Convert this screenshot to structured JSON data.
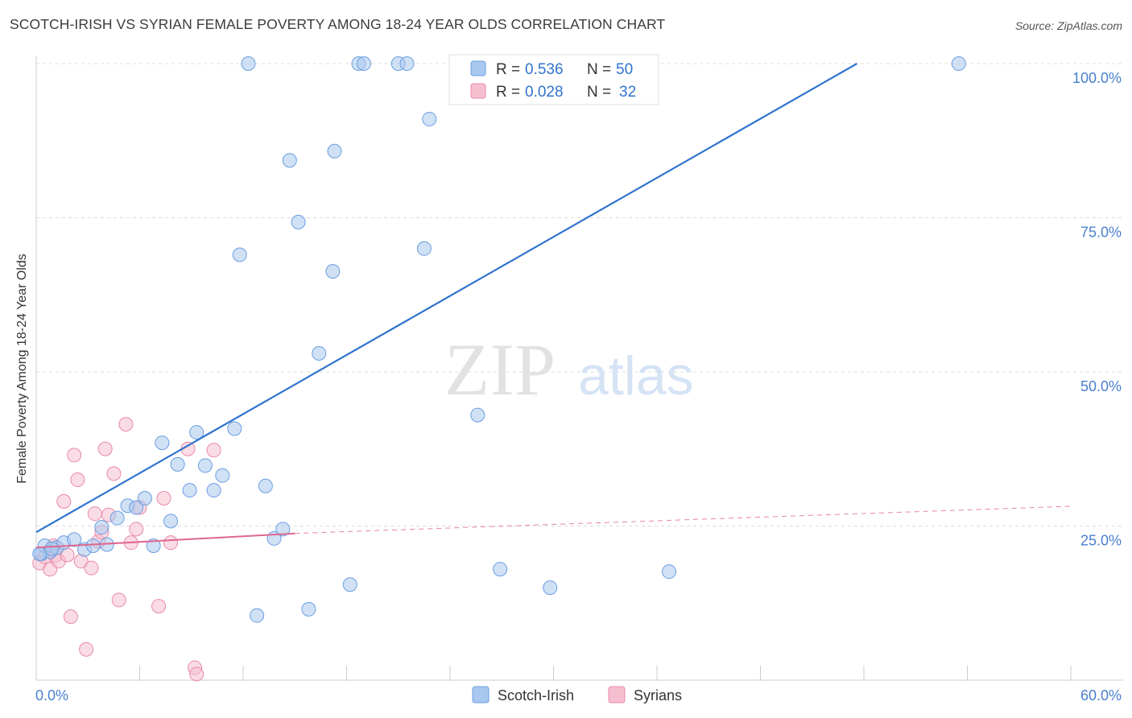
{
  "chart_data": {
    "type": "scatter",
    "title": "SCOTCH-IRISH VS SYRIAN FEMALE POVERTY AMONG 18-24 YEAR OLDS CORRELATION CHART",
    "source": "Source: ZipAtlas.com",
    "watermark": {
      "zip": "ZIP",
      "atlas": "atlas"
    },
    "ylabel": "Female Poverty Among 18-24 Year Olds",
    "xlabel": "",
    "xlim": [
      0,
      60
    ],
    "ylim": [
      0,
      105
    ],
    "x_tick_labels": [
      {
        "value": 0,
        "label": "0.0%"
      },
      {
        "value": 60,
        "label": "60.0%"
      }
    ],
    "y_tick_labels": [
      {
        "value": 25,
        "label": "25.0%"
      },
      {
        "value": 50,
        "label": "50.0%"
      },
      {
        "value": 75,
        "label": "75.0%"
      },
      {
        "value": 100,
        "label": "100.0%"
      }
    ],
    "x_minor_ticks": [
      0,
      6,
      12,
      18,
      24,
      30,
      36,
      42,
      48,
      54,
      60
    ],
    "legend_top": [
      {
        "name": "Scotch-Irish",
        "r_label": "R =",
        "r_value": "0.536",
        "n_label": "N =",
        "n_value": "50"
      },
      {
        "name": "Syrians",
        "r_label": "R =",
        "r_value": "0.028",
        "n_label": "N =",
        "n_value": "32"
      }
    ],
    "legend_bottom": [
      "Scotch-Irish",
      "Syrians"
    ],
    "colors": {
      "blue_fill": "#a9c8ef",
      "blue_stroke": "#6b9ee0",
      "blue_line": "#2f74cf",
      "pink_fill": "#f6bfd0",
      "pink_stroke": "#e98aa8",
      "pink_line": "#e0678f",
      "axis_text": "#4a7fd0",
      "grid": "#dcdcdc"
    },
    "series": [
      {
        "name": "Scotch-Irish",
        "points": [
          [
            0.3,
            20.5
          ],
          [
            0.5,
            21.8
          ],
          [
            0.8,
            20.8
          ],
          [
            1.2,
            21.5
          ],
          [
            1.6,
            22.3
          ],
          [
            2.2,
            22.8
          ],
          [
            2.8,
            21.2
          ],
          [
            3.3,
            21.8
          ],
          [
            4.1,
            22
          ],
          [
            3.8,
            24.8
          ],
          [
            4.7,
            26.3
          ],
          [
            5.3,
            28.3
          ],
          [
            5.8,
            28
          ],
          [
            6.3,
            29.5
          ],
          [
            6.8,
            21.8
          ],
          [
            7.3,
            38.5
          ],
          [
            7.8,
            25.8
          ],
          [
            8.2,
            35
          ],
          [
            8.9,
            30.8
          ],
          [
            9.3,
            40.2
          ],
          [
            9.8,
            34.8
          ],
          [
            10.3,
            30.8
          ],
          [
            10.8,
            33.2
          ],
          [
            11.5,
            40.8
          ],
          [
            11.8,
            69
          ],
          [
            12.3,
            100
          ],
          [
            12.8,
            10.5
          ],
          [
            13.3,
            31.5
          ],
          [
            13.8,
            23
          ],
          [
            14.3,
            24.5
          ],
          [
            14.7,
            84.3
          ],
          [
            15.2,
            74.3
          ],
          [
            15.8,
            11.5
          ],
          [
            16.4,
            53
          ],
          [
            17.2,
            66.3
          ],
          [
            17.3,
            85.8
          ],
          [
            18.2,
            15.5
          ],
          [
            18.7,
            100
          ],
          [
            19,
            100
          ],
          [
            21,
            100
          ],
          [
            21.5,
            100
          ],
          [
            22.8,
            91
          ],
          [
            22.5,
            70
          ],
          [
            25.6,
            43
          ],
          [
            26.9,
            18
          ],
          [
            29.8,
            15
          ],
          [
            36.7,
            17.6
          ],
          [
            53.5,
            100
          ],
          [
            0.2,
            20.5
          ],
          [
            0.9,
            21.3
          ]
        ],
        "trend": {
          "x0": 0,
          "y0": 24,
          "x1": 47.6,
          "y1": 100,
          "style": "solid"
        }
      },
      {
        "name": "Syrians",
        "points": [
          [
            0.2,
            19
          ],
          [
            0.5,
            20
          ],
          [
            0.8,
            18
          ],
          [
            1.1,
            20.2
          ],
          [
            1.3,
            19.3
          ],
          [
            1.6,
            29
          ],
          [
            1.8,
            20.3
          ],
          [
            2.0,
            10.3
          ],
          [
            2.2,
            36.5
          ],
          [
            2.4,
            32.5
          ],
          [
            2.6,
            19.3
          ],
          [
            2.9,
            5
          ],
          [
            3.2,
            18.2
          ],
          [
            3.4,
            27
          ],
          [
            3.6,
            22.5
          ],
          [
            3.8,
            24
          ],
          [
            4.0,
            37.5
          ],
          [
            4.2,
            26.8
          ],
          [
            4.5,
            33.5
          ],
          [
            4.8,
            13
          ],
          [
            5.2,
            41.5
          ],
          [
            5.5,
            22.3
          ],
          [
            5.8,
            24.5
          ],
          [
            6.0,
            28
          ],
          [
            7.1,
            12
          ],
          [
            7.4,
            29.5
          ],
          [
            7.8,
            22.3
          ],
          [
            8.8,
            37.5
          ],
          [
            9.2,
            2
          ],
          [
            9.3,
            1
          ],
          [
            10.3,
            37.3
          ],
          [
            1.0,
            21.8
          ]
        ],
        "trend": {
          "x0": 0,
          "y0": 21.5,
          "x1": 15,
          "y1": 23.8,
          "style": "solid",
          "dashed_to": {
            "x": 60,
            "y": 28.2
          }
        }
      }
    ]
  }
}
